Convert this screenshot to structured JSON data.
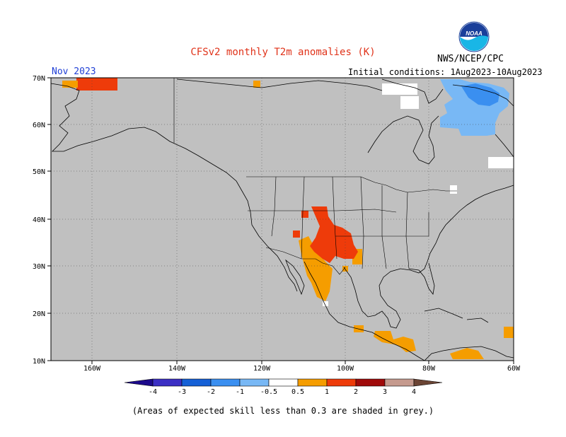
{
  "title": "CFSv2 monthly T2m anomalies (K)",
  "agency": "NWS/NCEP/CPC",
  "logo_text": "NOAA",
  "month": "Nov 2023",
  "initial_conditions": "Initial conditions: 1Aug2023-10Aug2023",
  "footnote": "(Areas of expected skill less than 0.3 are shaded in grey.)",
  "axes": {
    "lat_labels": [
      "70N",
      "60N",
      "50N",
      "40N",
      "30N",
      "20N",
      "10N"
    ],
    "lon_labels": [
      "160W",
      "140W",
      "120W",
      "100W",
      "80W",
      "60W"
    ]
  },
  "legend": {
    "labels": [
      "-4",
      "-3",
      "-2",
      "-1",
      "-0.5",
      "0.5",
      "1",
      "2",
      "3",
      "4"
    ],
    "colors": {
      "lt_m4": "#1c0a8c",
      "m4_m3": "#3b2fc4",
      "m3_m2": "#1560d6",
      "m2_m1": "#3a8ff0",
      "m1_m05": "#78b8f5",
      "m05_05": "#ffffff",
      "p05_1": "#f59d00",
      "p1_2": "#ee3b0a",
      "p2_3": "#a00a0a",
      "p3_4": "#c59a8e",
      "gt_4": "#6b4434"
    }
  },
  "colors": {
    "map_background": "#c0c0c0",
    "land_outline": "#000000",
    "title": "#e0331a",
    "month": "#1f3fd6"
  }
}
